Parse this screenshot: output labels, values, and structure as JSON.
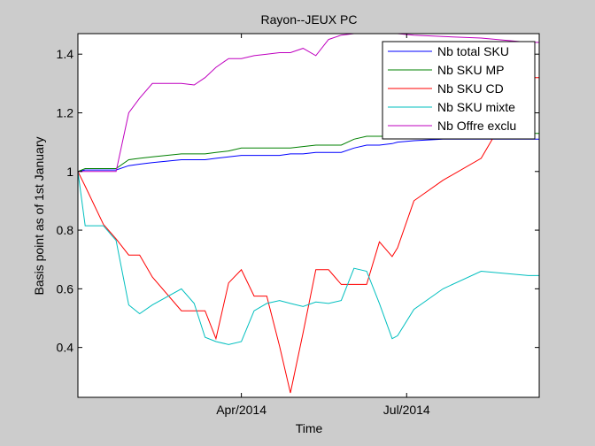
{
  "chart_data": {
    "type": "line",
    "title": "Rayon--JEUX PC",
    "xlabel": "Time",
    "ylabel": "Basis point as of 1st January",
    "xlim": [
      "2014-01-01",
      "2014-09-12"
    ],
    "ylim": [
      0.23,
      1.47
    ],
    "x_ticks": [
      {
        "date": "2014-04-01",
        "label": "Apr/2014"
      },
      {
        "date": "2014-07-01",
        "label": "Jul/2014"
      }
    ],
    "y_ticks": [
      {
        "value": 0.4,
        "label": "0.4"
      },
      {
        "value": 0.6,
        "label": "0.6"
      },
      {
        "value": 0.8,
        "label": "0.8"
      },
      {
        "value": 1.0,
        "label": "1"
      },
      {
        "value": 1.2,
        "label": "1.2"
      },
      {
        "value": 1.4,
        "label": "1.4"
      }
    ],
    "grid": false,
    "legend_position": "top-right",
    "x": [
      "2014-01-01",
      "2014-01-05",
      "2014-01-15",
      "2014-01-22",
      "2014-01-29",
      "2014-02-04",
      "2014-02-11",
      "2014-02-27",
      "2014-03-06",
      "2014-03-12",
      "2014-03-18",
      "2014-03-25",
      "2014-04-01",
      "2014-04-08",
      "2014-04-15",
      "2014-04-22",
      "2014-04-28",
      "2014-05-05",
      "2014-05-12",
      "2014-05-19",
      "2014-05-26",
      "2014-06-02",
      "2014-06-09",
      "2014-06-16",
      "2014-06-23",
      "2014-06-26",
      "2014-07-05",
      "2014-07-21",
      "2014-08-11",
      "2014-09-06",
      "2014-09-12"
    ],
    "series": [
      {
        "name": "Nb total SKU",
        "color": "#0000ff",
        "values": [
          1.0,
          1.005,
          1.005,
          1.005,
          1.02,
          1.025,
          1.03,
          1.04,
          1.04,
          1.04,
          1.045,
          1.05,
          1.055,
          1.055,
          1.055,
          1.055,
          1.06,
          1.06,
          1.065,
          1.065,
          1.065,
          1.08,
          1.09,
          1.09,
          1.095,
          1.1,
          1.105,
          1.11,
          1.11,
          1.11,
          1.11
        ]
      },
      {
        "name": "Nb SKU MP",
        "color": "#008000",
        "values": [
          1.0,
          1.01,
          1.01,
          1.01,
          1.04,
          1.045,
          1.05,
          1.06,
          1.06,
          1.06,
          1.065,
          1.07,
          1.08,
          1.08,
          1.08,
          1.08,
          1.08,
          1.085,
          1.09,
          1.09,
          1.09,
          1.11,
          1.12,
          1.12,
          1.12,
          1.13,
          1.13,
          1.13,
          1.13,
          1.13,
          1.13
        ]
      },
      {
        "name": "Nb SKU CD",
        "color": "#ff0000",
        "values": [
          1.0,
          0.95,
          0.82,
          0.77,
          0.715,
          0.715,
          0.64,
          0.525,
          0.525,
          0.525,
          0.43,
          0.62,
          0.665,
          0.575,
          0.575,
          0.405,
          0.245,
          0.45,
          0.665,
          0.665,
          0.615,
          0.615,
          0.615,
          0.76,
          0.71,
          0.74,
          0.9,
          0.97,
          1.045,
          1.32,
          1.32
        ]
      },
      {
        "name": "Nb SKU mixte",
        "color": "#00bfbf",
        "values": [
          1.0,
          0.815,
          0.815,
          0.765,
          0.545,
          0.515,
          0.545,
          0.6,
          0.55,
          0.435,
          0.42,
          0.41,
          0.42,
          0.525,
          0.55,
          0.56,
          0.55,
          0.54,
          0.555,
          0.55,
          0.56,
          0.67,
          0.66,
          0.55,
          0.43,
          0.44,
          0.53,
          0.6,
          0.66,
          0.645,
          0.645
        ]
      },
      {
        "name": "Nb Offre exclu",
        "color": "#bf00bf",
        "values": [
          1.0,
          1.0,
          1.0,
          1.0,
          1.2,
          1.25,
          1.3,
          1.3,
          1.295,
          1.32,
          1.355,
          1.385,
          1.385,
          1.395,
          1.4,
          1.405,
          1.405,
          1.42,
          1.395,
          1.45,
          1.465,
          1.47,
          1.47,
          1.47,
          1.47,
          1.47,
          1.465,
          1.46,
          1.455,
          1.44,
          1.44
        ]
      }
    ]
  }
}
